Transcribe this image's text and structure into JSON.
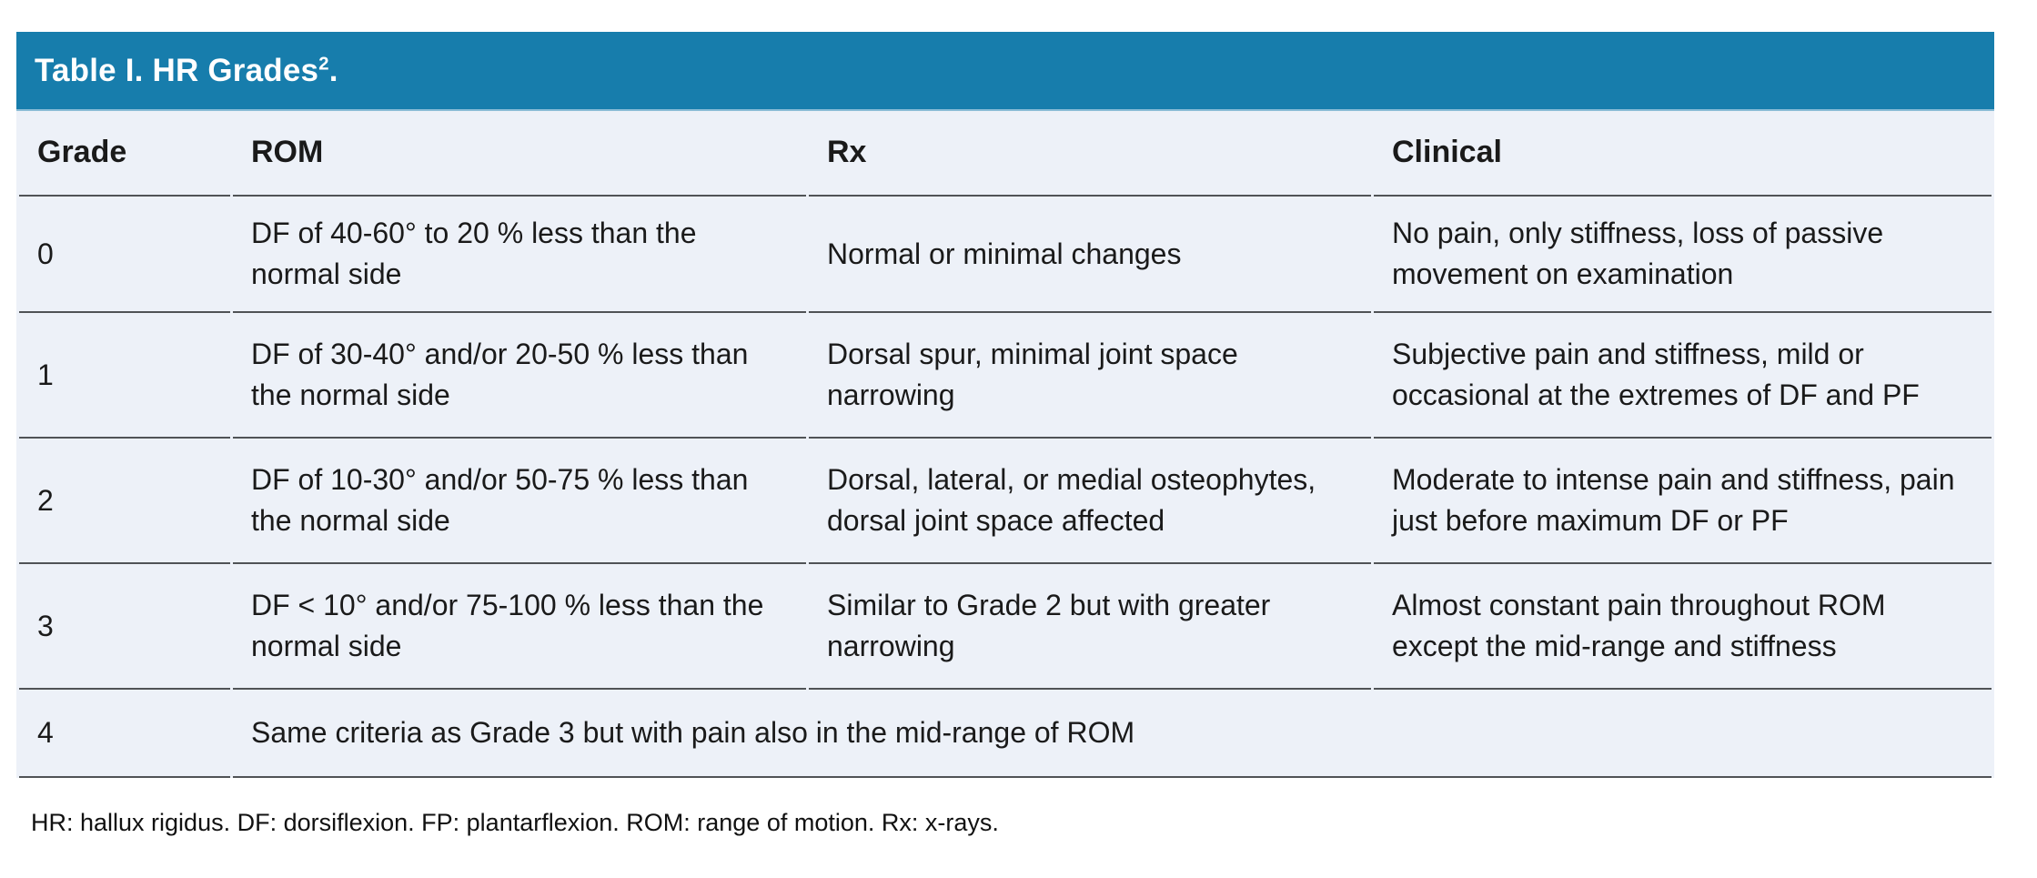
{
  "table": {
    "title": {
      "prefix": "Table I. HR Grades",
      "superscript": "2",
      "suffix": "."
    },
    "title_bar_color": "#177dac",
    "body_background": "#edf1f8",
    "columns": {
      "grade": "Grade",
      "rom": "ROM",
      "rx": "Rx",
      "clinical": "Clinical"
    },
    "rows": [
      {
        "grade": "0",
        "rom": "DF of 40-60° to 20 % less than the normal side",
        "rx": "Normal or minimal changes",
        "clinical": "No pain, only stiffness, loss of passive movement on examination"
      },
      {
        "grade": "1",
        "rom": "DF of 30-40° and/or 20-50 % less than the normal side",
        "rx": "Dorsal spur, minimal joint space narrowing",
        "clinical": "Subjective pain and stiffness, mild or occasional at the extremes of DF and PF"
      },
      {
        "grade": "2",
        "rom": "DF of 10-30° and/or 50-75 % less than the normal side",
        "rx": "Dorsal, lateral, or medial osteophytes, dorsal joint space affected",
        "clinical": "Moderate to intense pain and stiffness, pain just before maximum DF or PF"
      },
      {
        "grade": "3",
        "rom": "DF < 10° and/or 75-100 % less than the normal side",
        "rx": "Similar to Grade 2 but with greater narrowing",
        "clinical": "Almost constant pain throughout ROM except the mid-range and stiffness"
      }
    ],
    "spanning_row": {
      "grade": "4",
      "text": "Same criteria as Grade 3 but with pain also in the mid-range of ROM"
    },
    "footnote": "HR: hallux rigidus. DF: dorsiflexion. FP: plantarflexion. ROM: range of motion. Rx: x-rays."
  }
}
